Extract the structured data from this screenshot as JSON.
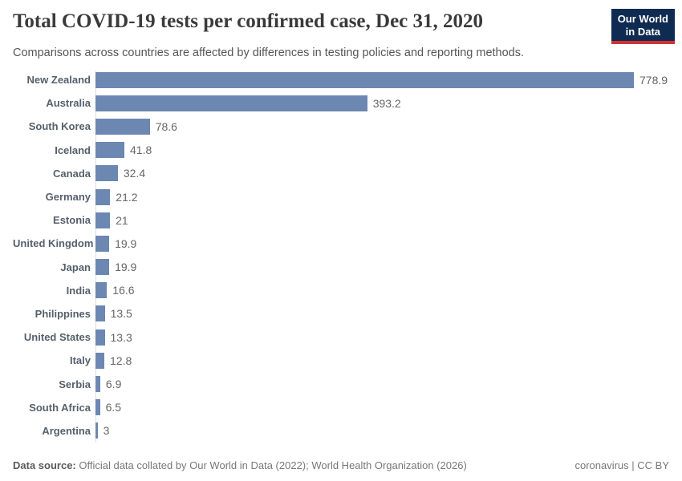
{
  "header": {
    "title": "Total COVID-19 tests per confirmed case, Dec 31, 2020",
    "subtitle": "Comparisons across countries are affected by differences in testing policies and reporting methods.",
    "logo": {
      "line1": "Our World",
      "line2": "in Data"
    }
  },
  "chart_data": {
    "type": "bar",
    "orientation": "horizontal",
    "title": "Total COVID-19 tests per confirmed case, Dec 31, 2020",
    "categories": [
      "New Zealand",
      "Australia",
      "South Korea",
      "Iceland",
      "Canada",
      "Germany",
      "Estonia",
      "United Kingdom",
      "Japan",
      "India",
      "Philippines",
      "United States",
      "Italy",
      "Serbia",
      "South Africa",
      "Argentina"
    ],
    "values": [
      778.9,
      393.2,
      78.6,
      41.8,
      32.4,
      21.2,
      21,
      19.9,
      19.9,
      16.6,
      13.5,
      13.3,
      12.8,
      6.9,
      6.5,
      3
    ],
    "xlim": [
      0,
      778.9
    ],
    "grid": false,
    "value_labels": "end-of-bar",
    "bar_color": "#6b87b2",
    "axis_color": "#dedede"
  },
  "footer": {
    "datasource_label": "Data source:",
    "datasource_text": " Official data collated by Our World in Data (2022); World Health Organization (2026)",
    "right_text": "coronavirus | CC BY"
  },
  "colors": {
    "bar": "#6b87b2",
    "axis": "#dedede",
    "category_label": "#55606c",
    "value_label": "#666666",
    "title": "#3a3a3a",
    "subtitle": "#565656",
    "logo_bg": "#102b52",
    "logo_accent": "#cf3331"
  }
}
